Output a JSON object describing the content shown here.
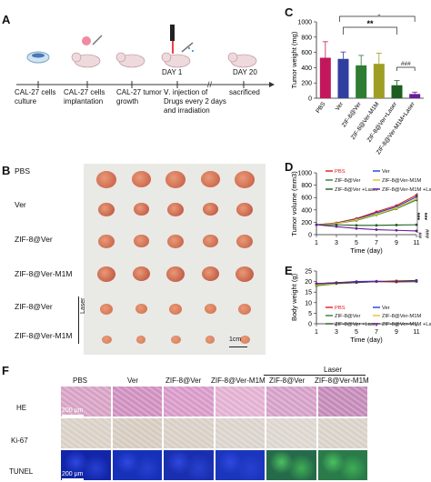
{
  "panels": {
    "A": "A",
    "B": "B",
    "C": "C",
    "D": "D",
    "E": "E",
    "F": "F"
  },
  "timeline": {
    "labels": [
      "CAL-27 cells culture",
      "CAL-27 cells implantation",
      "CAL-27 tumor growth",
      "Ⅴ. injection of Drugs every 2 days and irradiation",
      "sacrificed"
    ],
    "day1": "DAY 1",
    "day20": "DAY 20"
  },
  "photo": {
    "rows": [
      "PBS",
      "Ver",
      "ZIF-8@Ver",
      "ZIF-8@Ver-M1M",
      "ZIF-8@Ver",
      "ZIF-8@Ver-M1M"
    ],
    "laser": "Laser",
    "scale": "1cm"
  },
  "colors": {
    "PBS": "#e31a1c",
    "Ver": "#1f3fd6",
    "ZIF": "#2e7d32",
    "ZIFM": "#e7c320",
    "ZIFL": "#1b5e20",
    "ZIFML": "#6a1b9a"
  },
  "chart_data": [
    {
      "type": "bar",
      "panel": "C",
      "title": "",
      "ylabel": "Tumor weight (mg)",
      "ylim": [
        0,
        1000
      ],
      "yticks": [
        "0",
        "200",
        "400",
        "600",
        "800",
        "1000"
      ],
      "categories": [
        "PBS",
        "Ver",
        "ZIF-8@Ver",
        "ZIF-8@Ver-M1M",
        "ZIF-8@Ver+Laser",
        "ZIF-8@Ver-M1M+Laser"
      ],
      "values": [
        530,
        515,
        430,
        450,
        170,
        55
      ],
      "errors": [
        210,
        90,
        130,
        140,
        60,
        25
      ],
      "significance": [
        "**",
        "*",
        "###"
      ]
    },
    {
      "type": "line",
      "panel": "D",
      "ylabel": "Tumor volume (mm3)",
      "xlabel": "Time (day)",
      "x": [
        1,
        3,
        5,
        7,
        9,
        11
      ],
      "ylim": [
        0,
        1000
      ],
      "yticks": [
        "0",
        "200",
        "400",
        "600",
        "800",
        "1000"
      ],
      "xticks": [
        "1",
        "3",
        "5",
        "7",
        "9",
        "11"
      ],
      "legend": [
        "PBS",
        "Ver",
        "ZIF-8@Ver",
        "ZIF-8@Ver-M1M",
        "ZIF-8@Ver +Laser",
        "ZIF-8@Ver-M1M +Laser"
      ],
      "series": [
        {
          "name": "PBS",
          "values": [
            160,
            190,
            260,
            370,
            470,
            640
          ]
        },
        {
          "name": "Ver",
          "values": [
            160,
            185,
            250,
            350,
            450,
            610
          ]
        },
        {
          "name": "ZIF-8@Ver",
          "values": [
            160,
            180,
            230,
            320,
            420,
            560
          ]
        },
        {
          "name": "ZIF-8@Ver-M1M",
          "values": [
            160,
            180,
            240,
            330,
            430,
            580
          ]
        },
        {
          "name": "ZIF-8@Ver +Laser",
          "values": [
            160,
            160,
            150,
            150,
            155,
            160
          ]
        },
        {
          "name": "ZIF-8@Ver-M1M +Laser",
          "values": [
            160,
            130,
            100,
            80,
            70,
            60
          ]
        }
      ],
      "annotations": [
        "***",
        "***",
        "##",
        "###"
      ]
    },
    {
      "type": "line",
      "panel": "E",
      "ylabel": "Body weight (g)",
      "xlabel": "Time (day)",
      "x": [
        1,
        3,
        5,
        7,
        9,
        11
      ],
      "ylim": [
        0,
        25
      ],
      "yticks": [
        "0",
        "5",
        "10",
        "15",
        "20",
        "25"
      ],
      "xticks": [
        "1",
        "3",
        "5",
        "7",
        "9",
        "11"
      ],
      "legend": [
        "PBS",
        "Ver",
        "ZIF-8@Ver",
        "ZIF-8@Ver-M1M",
        "ZIF-8@Ver +Laser",
        "ZIF-8@Ver-M1M +Laser"
      ],
      "series": [
        {
          "name": "PBS",
          "values": [
            19,
            19.5,
            20,
            20,
            19.8,
            20
          ]
        },
        {
          "name": "Ver",
          "values": [
            19,
            19.3,
            20,
            20.2,
            20,
            20
          ]
        },
        {
          "name": "ZIF-8@Ver",
          "values": [
            18,
            19,
            19.5,
            20,
            20,
            20
          ]
        },
        {
          "name": "ZIF-8@Ver-M1M",
          "values": [
            18.5,
            19,
            19.5,
            20,
            20.5,
            20.5
          ]
        },
        {
          "name": "ZIF-8@Ver +Laser",
          "values": [
            19,
            19.2,
            19.5,
            20,
            20,
            20.5
          ]
        },
        {
          "name": "ZIF-8@Ver-M1M +Laser",
          "values": [
            19,
            19.5,
            19.8,
            20,
            20.2,
            20.5
          ]
        }
      ]
    }
  ],
  "histology": {
    "columns": [
      "PBS",
      "Ver",
      "ZIF-8@Ver",
      "ZIF-8@Ver-M1M",
      "ZIF-8@Ver",
      "ZIF-8@Ver-M1M"
    ],
    "laser": "Laser",
    "rows": [
      "HE",
      "Ki-67",
      "TUNEL"
    ],
    "scale": "200 μm"
  }
}
